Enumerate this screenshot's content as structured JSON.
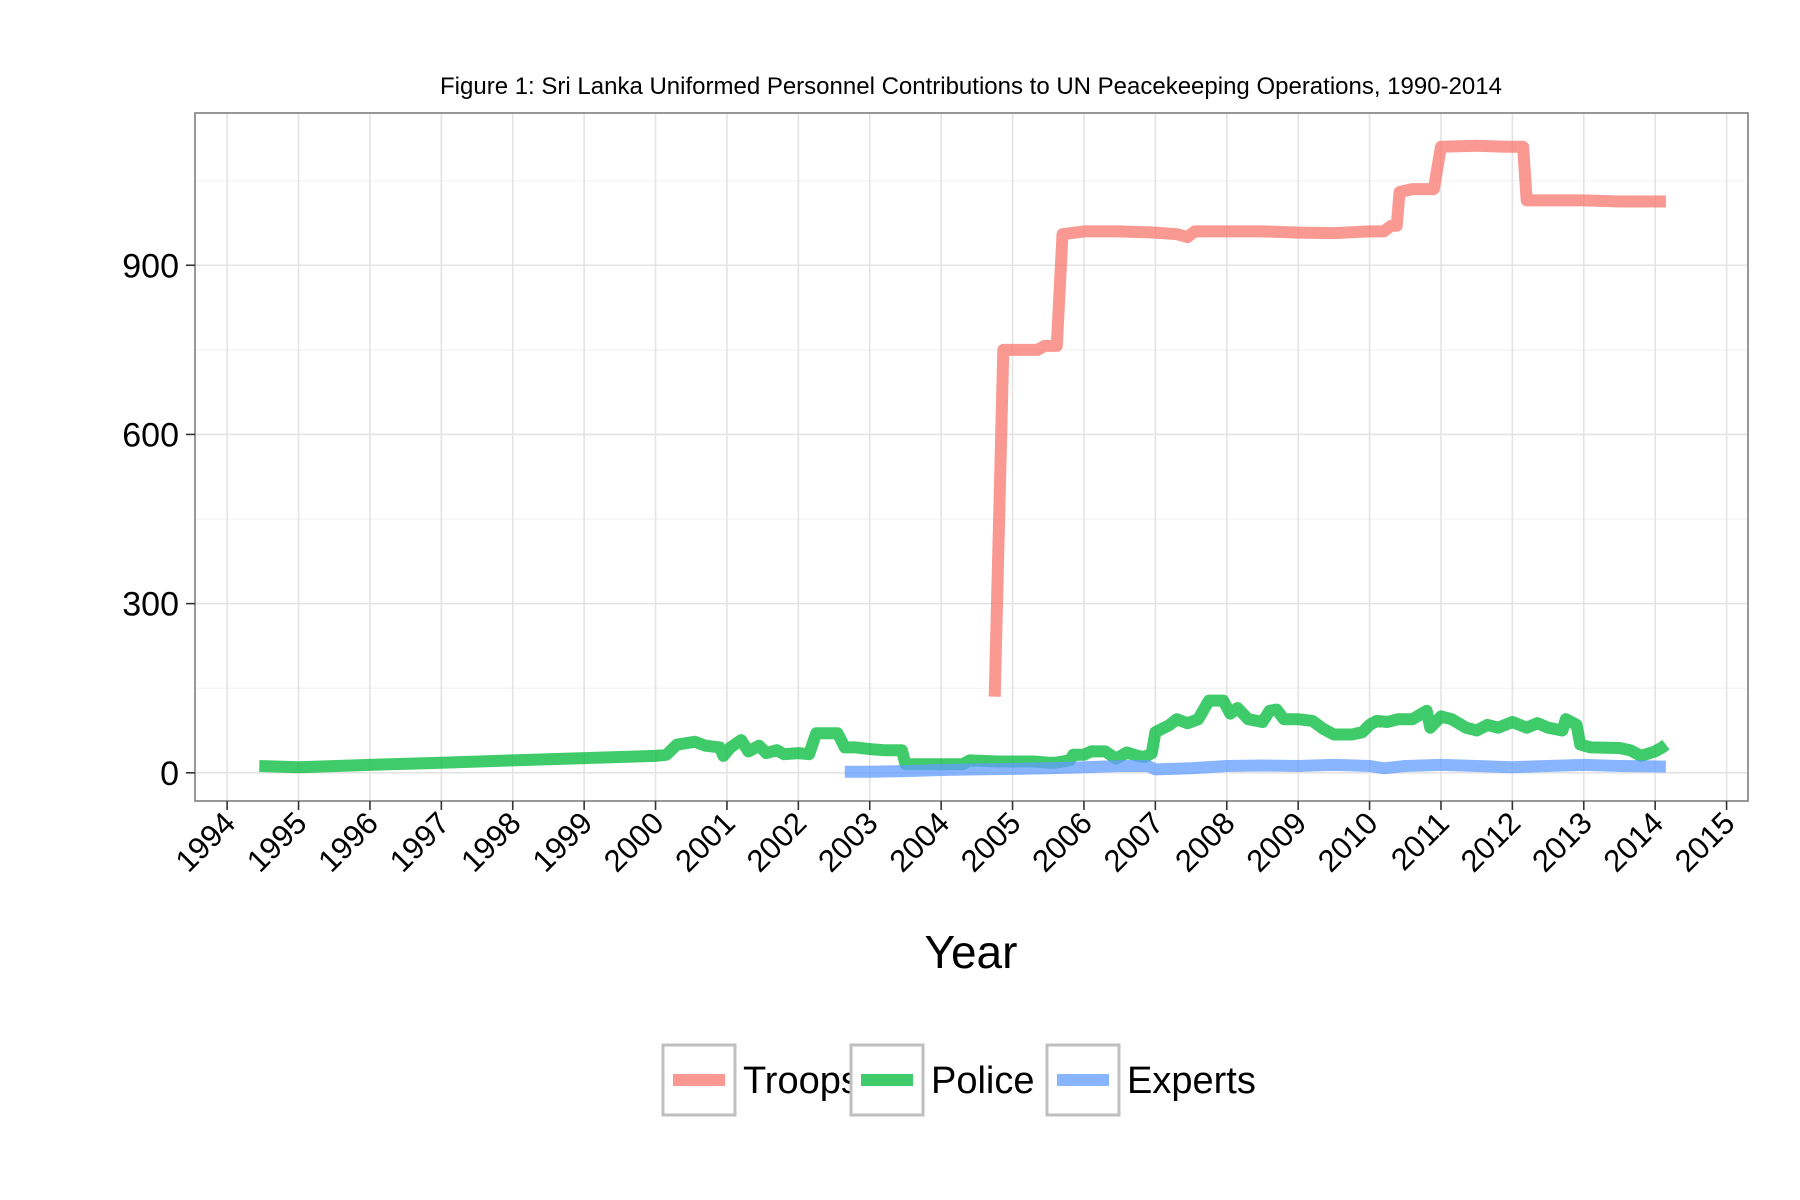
{
  "chart_data": {
    "type": "line",
    "title": "Figure 1: Sri Lanka Uniformed Personnel Contributions to UN Peacekeeping Operations, 1990-2014",
    "xlabel": "Year",
    "ylabel": "",
    "xlim": [
      1993.55,
      2015.3
    ],
    "ylim": [
      -50,
      1170
    ],
    "x_ticks": [
      1994,
      1995,
      1996,
      1997,
      1998,
      1999,
      2000,
      2001,
      2002,
      2003,
      2004,
      2005,
      2006,
      2007,
      2008,
      2009,
      2010,
      2011,
      2012,
      2013,
      2014,
      2015
    ],
    "y_ticks": [
      0,
      300,
      600,
      900
    ],
    "grid": true,
    "legend_position": "bottom",
    "series": [
      {
        "name": "Troops",
        "color": "#F8766D",
        "points": [
          [
            2004.75,
            135
          ],
          [
            2004.87,
            750
          ],
          [
            2005.1,
            750
          ],
          [
            2005.35,
            750
          ],
          [
            2005.45,
            757
          ],
          [
            2005.62,
            757
          ],
          [
            2005.7,
            955
          ],
          [
            2006.0,
            960
          ],
          [
            2006.5,
            960
          ],
          [
            2007.0,
            958
          ],
          [
            2007.3,
            955
          ],
          [
            2007.45,
            950
          ],
          [
            2007.55,
            960
          ],
          [
            2008.0,
            960
          ],
          [
            2008.5,
            960
          ],
          [
            2009.0,
            958
          ],
          [
            2009.5,
            957
          ],
          [
            2010.0,
            960
          ],
          [
            2010.2,
            960
          ],
          [
            2010.3,
            970
          ],
          [
            2010.38,
            970
          ],
          [
            2010.42,
            1030
          ],
          [
            2010.6,
            1035
          ],
          [
            2010.9,
            1035
          ],
          [
            2011.0,
            1110
          ],
          [
            2011.5,
            1112
          ],
          [
            2011.9,
            1110
          ],
          [
            2012.15,
            1110
          ],
          [
            2012.2,
            1015
          ],
          [
            2012.5,
            1015
          ],
          [
            2013.0,
            1015
          ],
          [
            2013.5,
            1013
          ],
          [
            2014.15,
            1013
          ]
        ]
      },
      {
        "name": "Police",
        "color": "#00BA38",
        "points": [
          [
            1994.45,
            12
          ],
          [
            1995.0,
            10
          ],
          [
            1996.0,
            14
          ],
          [
            1997.0,
            18
          ],
          [
            1998.0,
            22
          ],
          [
            1999.0,
            26
          ],
          [
            2000.0,
            30
          ],
          [
            2000.15,
            32
          ],
          [
            2000.3,
            50
          ],
          [
            2000.55,
            55
          ],
          [
            2000.7,
            48
          ],
          [
            2000.9,
            45
          ],
          [
            2000.95,
            30
          ],
          [
            2001.05,
            45
          ],
          [
            2001.2,
            58
          ],
          [
            2001.3,
            38
          ],
          [
            2001.45,
            48
          ],
          [
            2001.55,
            35
          ],
          [
            2001.7,
            40
          ],
          [
            2001.8,
            33
          ],
          [
            2002.0,
            35
          ],
          [
            2002.15,
            33
          ],
          [
            2002.25,
            70
          ],
          [
            2002.55,
            70
          ],
          [
            2002.65,
            45
          ],
          [
            2002.8,
            45
          ],
          [
            2003.0,
            42
          ],
          [
            2003.2,
            40
          ],
          [
            2003.45,
            40
          ],
          [
            2003.5,
            15
          ],
          [
            2003.8,
            15
          ],
          [
            2004.0,
            15
          ],
          [
            2004.3,
            15
          ],
          [
            2004.4,
            22
          ],
          [
            2004.8,
            20
          ],
          [
            2005.0,
            20
          ],
          [
            2005.3,
            20
          ],
          [
            2005.5,
            18
          ],
          [
            2005.6,
            18
          ],
          [
            2005.8,
            22
          ],
          [
            2005.85,
            32
          ],
          [
            2006.0,
            32
          ],
          [
            2006.1,
            38
          ],
          [
            2006.3,
            38
          ],
          [
            2006.45,
            25
          ],
          [
            2006.6,
            36
          ],
          [
            2006.75,
            30
          ],
          [
            2006.85,
            28
          ],
          [
            2006.95,
            35
          ],
          [
            2007.0,
            72
          ],
          [
            2007.2,
            85
          ],
          [
            2007.3,
            95
          ],
          [
            2007.45,
            88
          ],
          [
            2007.6,
            95
          ],
          [
            2007.75,
            128
          ],
          [
            2007.95,
            128
          ],
          [
            2008.05,
            105
          ],
          [
            2008.15,
            115
          ],
          [
            2008.3,
            95
          ],
          [
            2008.5,
            90
          ],
          [
            2008.6,
            110
          ],
          [
            2008.7,
            112
          ],
          [
            2008.8,
            95
          ],
          [
            2009.0,
            95
          ],
          [
            2009.2,
            92
          ],
          [
            2009.35,
            78
          ],
          [
            2009.5,
            68
          ],
          [
            2009.75,
            68
          ],
          [
            2009.9,
            72
          ],
          [
            2010.0,
            85
          ],
          [
            2010.1,
            92
          ],
          [
            2010.25,
            90
          ],
          [
            2010.4,
            95
          ],
          [
            2010.6,
            95
          ],
          [
            2010.8,
            110
          ],
          [
            2010.85,
            80
          ],
          [
            2011.0,
            100
          ],
          [
            2011.15,
            95
          ],
          [
            2011.35,
            80
          ],
          [
            2011.5,
            75
          ],
          [
            2011.65,
            85
          ],
          [
            2011.8,
            80
          ],
          [
            2012.0,
            90
          ],
          [
            2012.2,
            80
          ],
          [
            2012.35,
            88
          ],
          [
            2012.5,
            80
          ],
          [
            2012.7,
            75
          ],
          [
            2012.75,
            95
          ],
          [
            2012.9,
            85
          ],
          [
            2012.95,
            50
          ],
          [
            2013.1,
            45
          ],
          [
            2013.5,
            44
          ],
          [
            2013.65,
            40
          ],
          [
            2013.8,
            30
          ],
          [
            2014.0,
            38
          ],
          [
            2014.1,
            45
          ],
          [
            2014.15,
            50
          ]
        ]
      },
      {
        "name": "Experts",
        "color": "#619CFF",
        "points": [
          [
            2002.65,
            2
          ],
          [
            2003.0,
            2
          ],
          [
            2003.5,
            3
          ],
          [
            2004.0,
            5
          ],
          [
            2004.5,
            6
          ],
          [
            2005.0,
            7
          ],
          [
            2005.5,
            8
          ],
          [
            2006.0,
            10
          ],
          [
            2006.5,
            12
          ],
          [
            2006.9,
            12
          ],
          [
            2007.0,
            6
          ],
          [
            2007.5,
            8
          ],
          [
            2008.0,
            12
          ],
          [
            2008.5,
            13
          ],
          [
            2009.0,
            12
          ],
          [
            2009.5,
            14
          ],
          [
            2010.0,
            12
          ],
          [
            2010.2,
            8
          ],
          [
            2010.5,
            12
          ],
          [
            2011.0,
            14
          ],
          [
            2011.5,
            12
          ],
          [
            2012.0,
            10
          ],
          [
            2012.5,
            12
          ],
          [
            2013.0,
            14
          ],
          [
            2013.5,
            12
          ],
          [
            2014.15,
            11
          ]
        ]
      }
    ]
  }
}
